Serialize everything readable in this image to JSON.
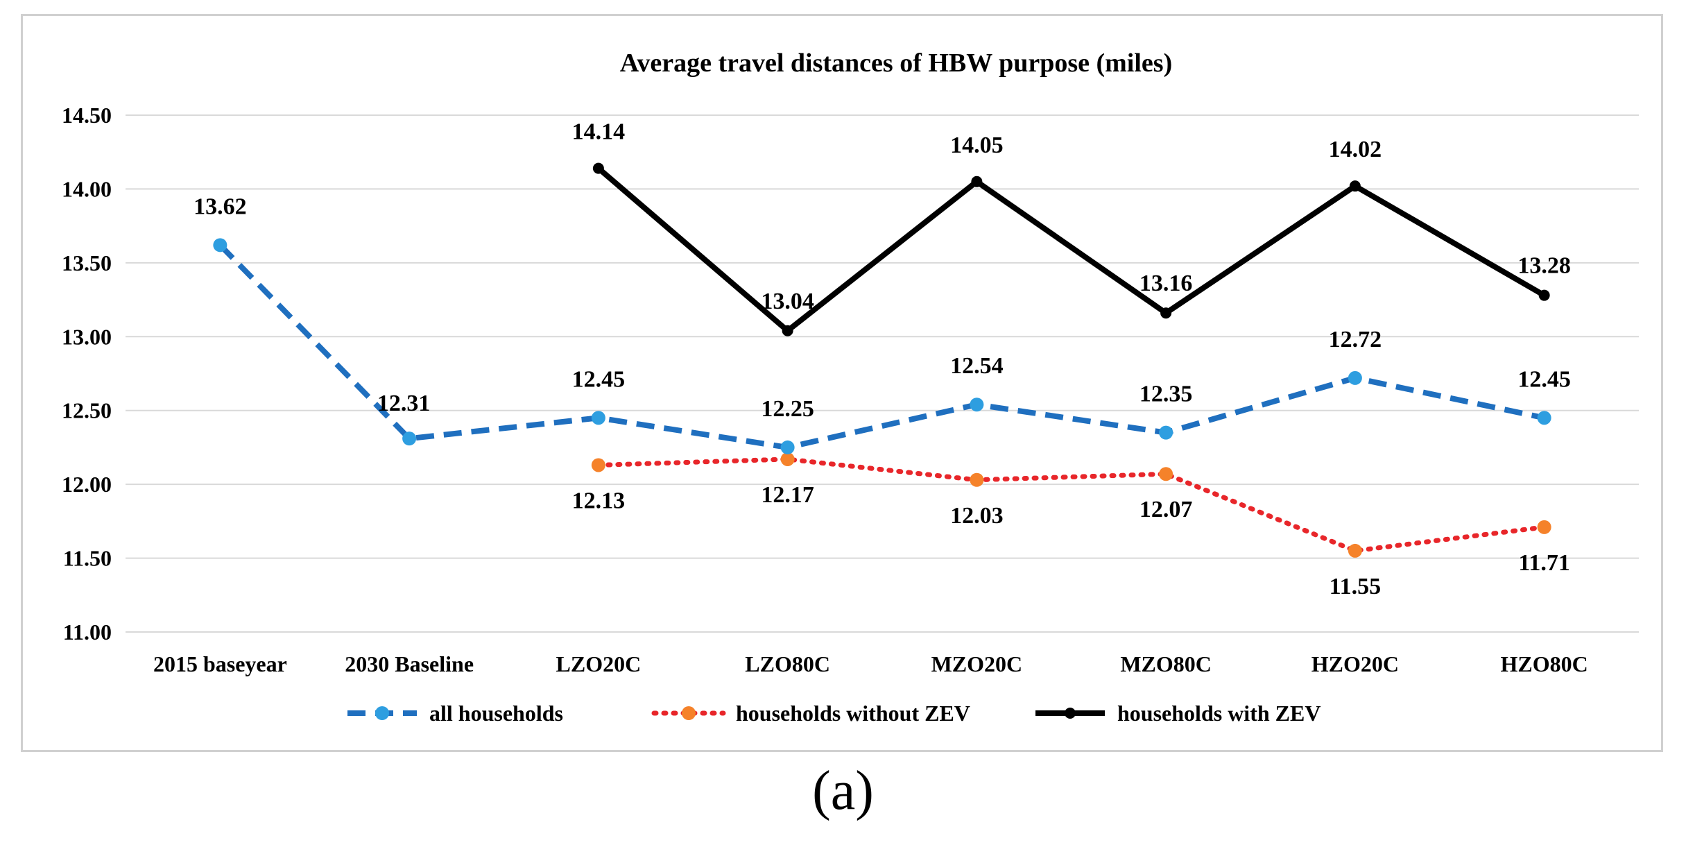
{
  "caption": "(a)",
  "chart_data": {
    "type": "line",
    "title": "Average travel distances of HBW purpose (miles)",
    "xlabel": "",
    "ylabel": "",
    "ylim": [
      11.0,
      14.5
    ],
    "yticks": [
      "11.00",
      "11.50",
      "12.00",
      "12.50",
      "13.00",
      "13.50",
      "14.00",
      "14.50"
    ],
    "categories": [
      "2015 baseyear",
      "2030 Baseline",
      "LZO20C",
      "LZO80C",
      "MZO20C",
      "MZO80C",
      "HZO20C",
      "HZO80C"
    ],
    "grid": true,
    "legend_position": "bottom",
    "series": [
      {
        "name": "all households",
        "color": "#1f6fbf",
        "marker_color": "#2e9ee0",
        "line_style": "dashed",
        "values": [
          13.62,
          12.31,
          12.45,
          12.25,
          12.54,
          12.35,
          12.72,
          12.45
        ],
        "labels": [
          "13.62",
          "12.31",
          "12.45",
          "12.25",
          "12.54",
          "12.35",
          "12.72",
          "12.45"
        ]
      },
      {
        "name": "households without ZEV",
        "color": "#e8262a",
        "marker_color": "#f5822a",
        "line_style": "dotted",
        "values": [
          null,
          null,
          12.13,
          12.17,
          12.03,
          12.07,
          11.55,
          11.71
        ],
        "labels": [
          null,
          null,
          "12.13",
          "12.17",
          "12.03",
          "12.07",
          "11.55",
          "11.71"
        ]
      },
      {
        "name": "households with ZEV",
        "color": "#000000",
        "marker_color": "#000000",
        "line_style": "solid",
        "values": [
          null,
          null,
          14.14,
          13.04,
          14.05,
          13.16,
          14.02,
          13.28
        ],
        "labels": [
          null,
          null,
          "14.14",
          "13.04",
          "14.05",
          "13.16",
          "14.02",
          "13.28"
        ]
      }
    ]
  }
}
